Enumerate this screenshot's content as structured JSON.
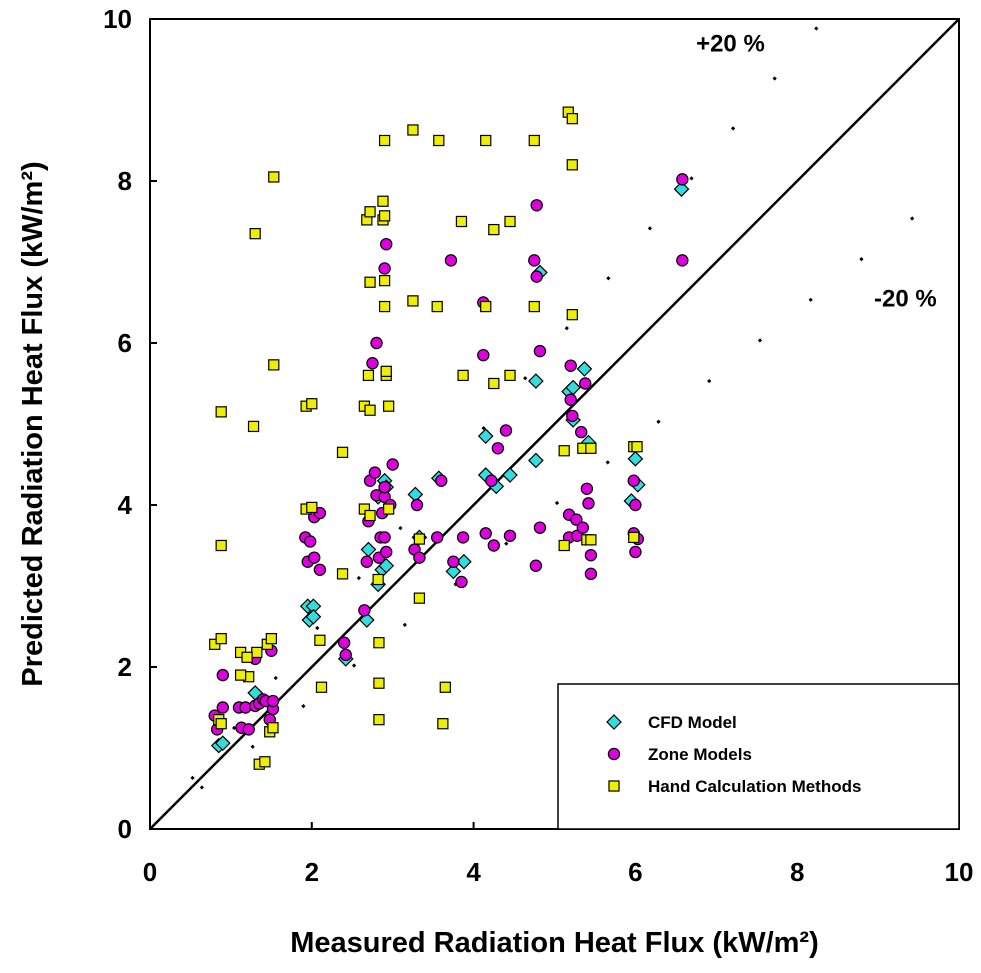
{
  "chart_data": {
    "type": "scatter",
    "xlabel": "Measured Radiation Heat Flux (kW/m²)",
    "ylabel": "Predicted Radiation Heat Flux (kW/m²)",
    "xlim": [
      0,
      10
    ],
    "ylim": [
      0,
      10
    ],
    "xticks": [
      "0",
      "2",
      "4",
      "6",
      "8",
      "10"
    ],
    "yticks": [
      "0",
      "2",
      "4",
      "6",
      "8",
      "10"
    ],
    "grid": false,
    "legend_position": "bottom-right",
    "annotations": {
      "upper": "+20 %",
      "lower": "-20 %"
    },
    "reference_lines": [
      "y = x",
      "y = 1.2x",
      "y = 0.8x"
    ],
    "series": [
      {
        "name": "CFD Model",
        "marker": "diamond",
        "color": "#33dddd",
        "points": [
          [
            0.85,
            1.03
          ],
          [
            0.9,
            1.06
          ],
          [
            1.3,
            1.68
          ],
          [
            1.95,
            2.75
          ],
          [
            2.02,
            2.75
          ],
          [
            1.97,
            2.58
          ],
          [
            2.02,
            2.62
          ],
          [
            2.42,
            2.1
          ],
          [
            2.68,
            2.58
          ],
          [
            2.7,
            3.45
          ],
          [
            2.82,
            3.02
          ],
          [
            2.87,
            3.2
          ],
          [
            2.92,
            3.25
          ],
          [
            2.9,
            4.3
          ],
          [
            2.92,
            4.22
          ],
          [
            2.82,
            4.1
          ],
          [
            3.28,
            4.13
          ],
          [
            3.57,
            4.33
          ],
          [
            3.33,
            3.6
          ],
          [
            3.75,
            3.18
          ],
          [
            3.88,
            3.3
          ],
          [
            4.15,
            4.85
          ],
          [
            4.15,
            4.37
          ],
          [
            4.28,
            4.23
          ],
          [
            4.45,
            4.37
          ],
          [
            4.77,
            4.55
          ],
          [
            4.77,
            5.53
          ],
          [
            4.82,
            6.87
          ],
          [
            5.18,
            5.4
          ],
          [
            5.23,
            5.45
          ],
          [
            5.37,
            5.68
          ],
          [
            5.23,
            5.05
          ],
          [
            5.42,
            4.77
          ],
          [
            5.95,
            4.05
          ],
          [
            6.0,
            4.57
          ],
          [
            6.03,
            4.25
          ],
          [
            6.57,
            7.9
          ]
        ]
      },
      {
        "name": "Zone Models",
        "marker": "circle",
        "color": "#dd00dd",
        "points": [
          [
            0.8,
            1.4
          ],
          [
            0.83,
            1.23
          ],
          [
            0.9,
            1.5
          ],
          [
            0.9,
            1.9
          ],
          [
            1.1,
            1.5
          ],
          [
            1.13,
            1.25
          ],
          [
            1.18,
            1.5
          ],
          [
            1.22,
            1.23
          ],
          [
            1.3,
            2.1
          ],
          [
            1.3,
            1.52
          ],
          [
            1.35,
            1.55
          ],
          [
            1.4,
            1.6
          ],
          [
            1.43,
            1.58
          ],
          [
            1.48,
            1.35
          ],
          [
            1.52,
            1.48
          ],
          [
            1.52,
            1.58
          ],
          [
            1.5,
            2.2
          ],
          [
            1.92,
            3.6
          ],
          [
            1.95,
            3.3
          ],
          [
            1.98,
            3.55
          ],
          [
            2.03,
            3.85
          ],
          [
            2.03,
            3.35
          ],
          [
            2.1,
            3.9
          ],
          [
            2.1,
            3.2
          ],
          [
            2.4,
            2.3
          ],
          [
            2.42,
            2.15
          ],
          [
            2.65,
            2.7
          ],
          [
            2.68,
            3.3
          ],
          [
            2.7,
            3.8
          ],
          [
            2.72,
            4.3
          ],
          [
            2.75,
            5.75
          ],
          [
            2.8,
            6.0
          ],
          [
            2.78,
            4.4
          ],
          [
            2.8,
            4.12
          ],
          [
            2.83,
            3.35
          ],
          [
            2.85,
            3.6
          ],
          [
            2.87,
            3.9
          ],
          [
            2.9,
            3.6
          ],
          [
            2.9,
            4.1
          ],
          [
            2.9,
            4.22
          ],
          [
            2.9,
            6.92
          ],
          [
            2.92,
            7.22
          ],
          [
            2.92,
            3.42
          ],
          [
            2.97,
            4.0
          ],
          [
            3.0,
            4.5
          ],
          [
            3.27,
            3.45
          ],
          [
            3.3,
            4.0
          ],
          [
            3.33,
            3.35
          ],
          [
            3.6,
            4.3
          ],
          [
            3.55,
            3.6
          ],
          [
            3.72,
            7.02
          ],
          [
            3.75,
            3.3
          ],
          [
            3.85,
            3.05
          ],
          [
            3.87,
            3.6
          ],
          [
            4.12,
            6.5
          ],
          [
            4.12,
            5.85
          ],
          [
            4.15,
            3.65
          ],
          [
            4.22,
            4.3
          ],
          [
            4.25,
            3.5
          ],
          [
            4.3,
            4.7
          ],
          [
            4.4,
            4.92
          ],
          [
            4.45,
            3.62
          ],
          [
            4.75,
            7.02
          ],
          [
            4.78,
            7.7
          ],
          [
            4.78,
            6.82
          ],
          [
            4.82,
            5.9
          ],
          [
            4.77,
            3.25
          ],
          [
            4.82,
            3.72
          ],
          [
            5.18,
            3.6
          ],
          [
            5.18,
            3.88
          ],
          [
            5.2,
            5.72
          ],
          [
            5.2,
            5.3
          ],
          [
            5.22,
            5.1
          ],
          [
            5.27,
            3.82
          ],
          [
            5.28,
            3.62
          ],
          [
            5.33,
            4.9
          ],
          [
            5.35,
            3.72
          ],
          [
            5.38,
            5.5
          ],
          [
            5.4,
            4.2
          ],
          [
            5.42,
            4.02
          ],
          [
            5.45,
            3.38
          ],
          [
            5.45,
            3.15
          ],
          [
            5.98,
            4.3
          ],
          [
            5.98,
            3.65
          ],
          [
            6.0,
            3.42
          ],
          [
            6.0,
            4.0
          ],
          [
            6.03,
            3.58
          ],
          [
            6.58,
            8.02
          ],
          [
            6.58,
            7.02
          ]
        ]
      },
      {
        "name": "Hand Calculation Methods",
        "marker": "square",
        "color": "#eeee00",
        "points": [
          [
            0.8,
            2.28
          ],
          [
            0.85,
            1.35
          ],
          [
            0.88,
            2.35
          ],
          [
            0.88,
            1.3
          ],
          [
            0.88,
            3.5
          ],
          [
            0.88,
            5.15
          ],
          [
            1.28,
            4.97
          ],
          [
            1.3,
            7.35
          ],
          [
            1.32,
            2.18
          ],
          [
            1.35,
            0.8
          ],
          [
            1.42,
            0.83
          ],
          [
            1.12,
            2.18
          ],
          [
            1.2,
            2.12
          ],
          [
            1.22,
            1.88
          ],
          [
            1.12,
            1.9
          ],
          [
            1.45,
            2.28
          ],
          [
            1.48,
            1.2
          ],
          [
            1.5,
            2.35
          ],
          [
            1.52,
            1.25
          ],
          [
            1.53,
            5.73
          ],
          [
            1.53,
            8.05
          ],
          [
            1.93,
            3.95
          ],
          [
            1.93,
            5.22
          ],
          [
            2.0,
            5.25
          ],
          [
            2.0,
            3.97
          ],
          [
            2.1,
            2.33
          ],
          [
            2.12,
            1.75
          ],
          [
            2.38,
            4.65
          ],
          [
            2.38,
            3.15
          ],
          [
            2.65,
            5.22
          ],
          [
            2.65,
            3.95
          ],
          [
            2.68,
            7.52
          ],
          [
            2.7,
            5.6
          ],
          [
            2.72,
            7.62
          ],
          [
            2.72,
            6.75
          ],
          [
            2.72,
            5.17
          ],
          [
            2.72,
            3.87
          ],
          [
            2.82,
            3.08
          ],
          [
            2.83,
            2.3
          ],
          [
            2.83,
            1.8
          ],
          [
            2.83,
            1.35
          ],
          [
            2.88,
            7.75
          ],
          [
            2.88,
            7.52
          ],
          [
            2.9,
            7.57
          ],
          [
            2.9,
            6.77
          ],
          [
            2.9,
            6.45
          ],
          [
            2.9,
            8.5
          ],
          [
            2.92,
            5.6
          ],
          [
            2.92,
            5.65
          ],
          [
            2.95,
            5.22
          ],
          [
            2.95,
            3.95
          ],
          [
            3.25,
            8.63
          ],
          [
            3.25,
            6.52
          ],
          [
            3.33,
            3.58
          ],
          [
            3.33,
            2.85
          ],
          [
            3.55,
            6.45
          ],
          [
            3.57,
            8.5
          ],
          [
            3.62,
            1.3
          ],
          [
            3.65,
            1.75
          ],
          [
            3.85,
            7.5
          ],
          [
            3.87,
            5.6
          ],
          [
            4.15,
            8.5
          ],
          [
            4.15,
            6.45
          ],
          [
            4.25,
            5.5
          ],
          [
            4.25,
            7.4
          ],
          [
            4.45,
            7.5
          ],
          [
            4.45,
            5.6
          ],
          [
            4.75,
            8.5
          ],
          [
            4.75,
            6.45
          ],
          [
            5.12,
            3.5
          ],
          [
            5.12,
            4.67
          ],
          [
            5.17,
            8.85
          ],
          [
            5.22,
            8.77
          ],
          [
            5.22,
            8.2
          ],
          [
            5.22,
            6.35
          ],
          [
            5.35,
            4.7
          ],
          [
            5.4,
            3.57
          ],
          [
            5.45,
            4.7
          ],
          [
            5.45,
            3.57
          ],
          [
            5.98,
            3.6
          ],
          [
            5.98,
            4.72
          ],
          [
            6.02,
            4.72
          ]
        ]
      }
    ]
  }
}
